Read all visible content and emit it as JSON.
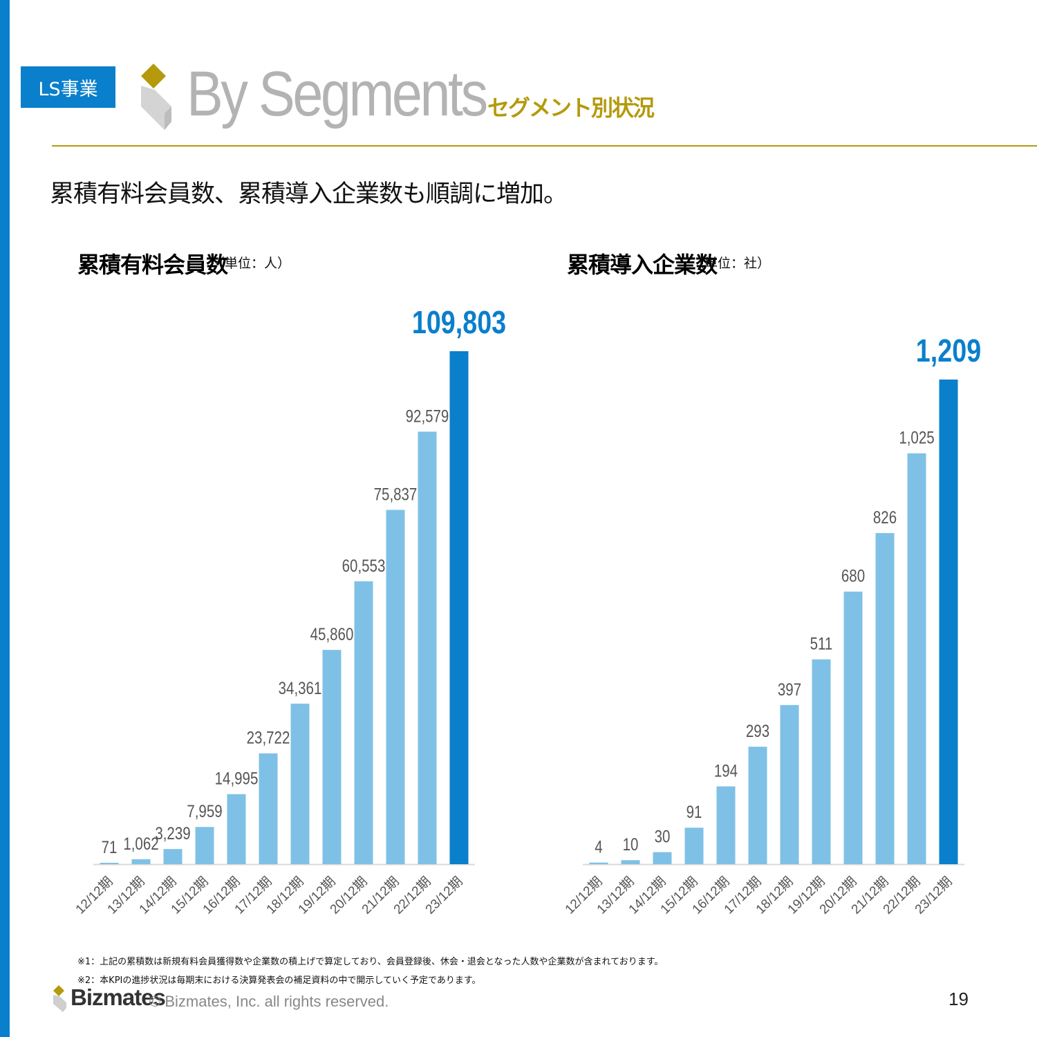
{
  "colors": {
    "accent_blue": "#0a7fcc",
    "bar_light": "#7fc1e6",
    "bar_highlight": "#0a7fcc",
    "gold": "#b49a0c",
    "heading_gray": "#b3b3b3",
    "label_gray": "#555555"
  },
  "header": {
    "tag": "LS事業",
    "title": "By Segments",
    "subtitle": "セグメント別状況"
  },
  "lead": "累積有料会員数、累積導入企業数も順調に増加。",
  "charts": {
    "left": {
      "title": "累積有料会員数",
      "unit": "（単位：人）"
    },
    "right": {
      "title": "累積導入企業数",
      "unit": "（単位：社）"
    }
  },
  "chart_data": [
    {
      "type": "bar",
      "title": "累積有料会員数",
      "categories": [
        "12/12期",
        "13/12期",
        "14/12期",
        "15/12期",
        "16/12期",
        "17/12期",
        "18/12期",
        "19/12期",
        "20/12期",
        "21/12期",
        "22/12期",
        "23/12期"
      ],
      "values": [
        71,
        1062,
        3239,
        7959,
        14995,
        23722,
        34361,
        45860,
        60553,
        75837,
        92579,
        109803
      ],
      "value_labels": [
        "71",
        "1,062",
        "3,239",
        "7,959",
        "14,995",
        "23,722",
        "34,361",
        "45,860",
        "60,553",
        "75,837",
        "92,579",
        "109,803"
      ],
      "highlight_index": 11,
      "ylim": [
        0,
        109803
      ],
      "grid": false,
      "legend": "none"
    },
    {
      "type": "bar",
      "title": "累積導入企業数",
      "categories": [
        "12/12期",
        "13/12期",
        "14/12期",
        "15/12期",
        "16/12期",
        "17/12期",
        "18/12期",
        "19/12期",
        "20/12期",
        "21/12期",
        "22/12期",
        "23/12期"
      ],
      "values": [
        4,
        10,
        30,
        91,
        194,
        293,
        397,
        511,
        680,
        826,
        1025,
        1209
      ],
      "value_labels": [
        "4",
        "10",
        "30",
        "91",
        "194",
        "293",
        "397",
        "511",
        "680",
        "826",
        "1,025",
        "1,209"
      ],
      "highlight_index": 11,
      "ylim": [
        0,
        1209
      ],
      "grid": false,
      "legend": "none"
    }
  ],
  "notes": {
    "note1": "※1：上記の累積数は新規有料会員獲得数や企業数の積上げで算定しており、会員登録後、休会・退会となった人数や企業数が含まれております。",
    "note2": "※2：本KPIの進捗状況は毎期末における決算発表会の補足資料の中で開示していく予定であります。"
  },
  "footer": {
    "brand": "Bizmates",
    "copyright": "© Bizmates, Inc. all rights reserved.",
    "page": "19"
  }
}
